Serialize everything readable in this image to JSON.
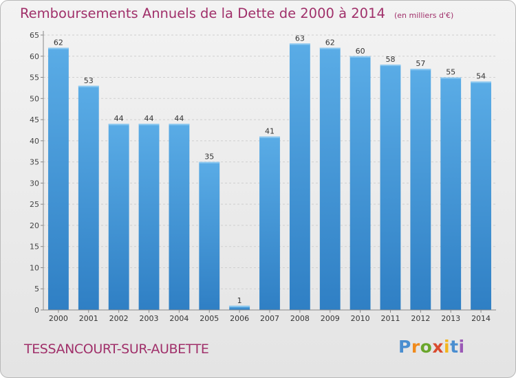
{
  "chart_data": {
    "type": "bar",
    "title": "Remboursements Annuels de la Dette de 2000 à 2014",
    "subtitle": "(en milliers d'€)",
    "categories": [
      "2000",
      "2001",
      "2002",
      "2003",
      "2004",
      "2005",
      "2006",
      "2007",
      "2008",
      "2009",
      "2010",
      "2011",
      "2012",
      "2013",
      "2014"
    ],
    "values": [
      62,
      53,
      44,
      44,
      44,
      35,
      1,
      41,
      63,
      62,
      60,
      58,
      57,
      55,
      54
    ],
    "ylim": [
      0,
      65
    ],
    "yticks": [
      0,
      5,
      10,
      15,
      20,
      25,
      30,
      35,
      40,
      45,
      50,
      55,
      60,
      65
    ],
    "xlabel": "",
    "ylabel": "",
    "grid": true,
    "bar_color": "#4f9fdf"
  },
  "footer": {
    "commune": "TESSANCOURT-SUR-AUBETTE",
    "logo": "Proxiti"
  }
}
